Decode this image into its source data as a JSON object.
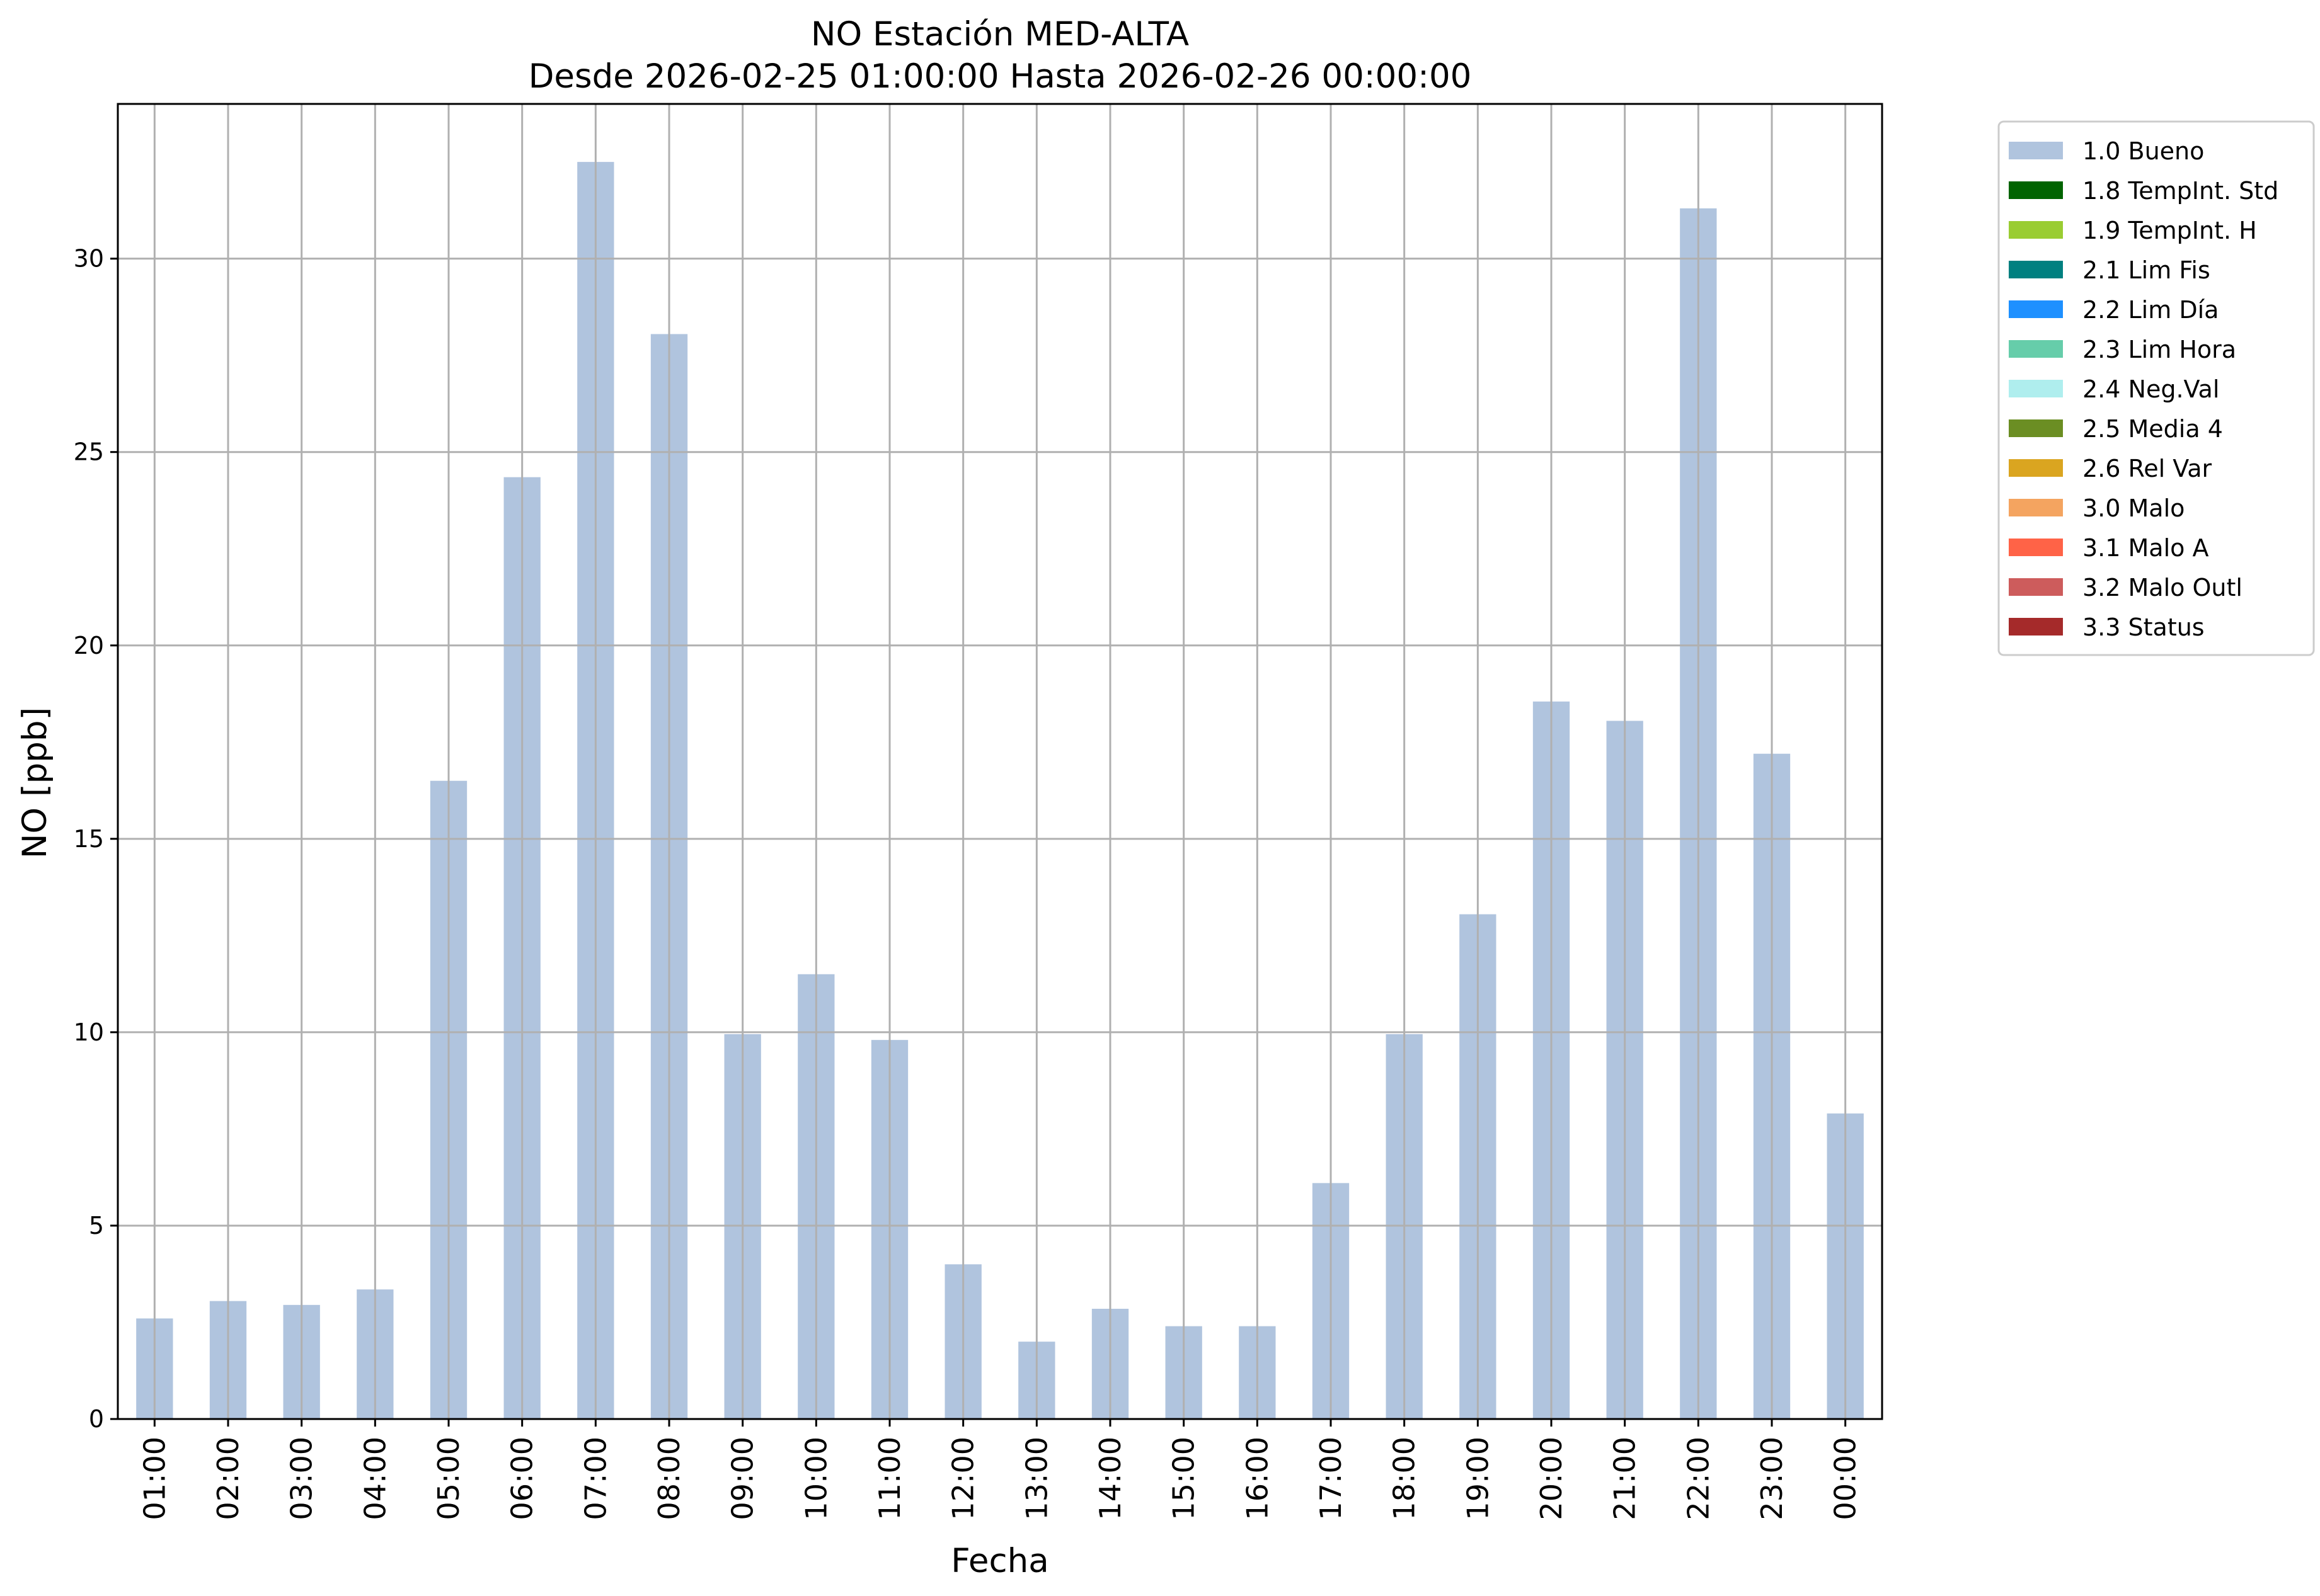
{
  "chart_data": {
    "type": "bar",
    "title": "NO Estación MED-ALTA",
    "subtitle": "Desde 2026-02-25 01:00:00 Hasta 2026-02-26 00:00:00",
    "xlabel": "Fecha",
    "ylabel": "NO [ppb]",
    "ylim": [
      0,
      34
    ],
    "yticks": [
      0,
      5,
      10,
      15,
      20,
      25,
      30
    ],
    "grid": true,
    "legend_position": "outside-top-right",
    "categories": [
      "01:00",
      "02:00",
      "03:00",
      "04:00",
      "05:00",
      "06:00",
      "07:00",
      "08:00",
      "09:00",
      "10:00",
      "11:00",
      "12:00",
      "13:00",
      "14:00",
      "15:00",
      "16:00",
      "17:00",
      "18:00",
      "19:00",
      "20:00",
      "21:00",
      "22:00",
      "23:00",
      "00:00"
    ],
    "series": [
      {
        "name": "1.0 Bueno",
        "color": "#b0c4de",
        "values": [
          2.6,
          3.05,
          2.95,
          3.35,
          16.5,
          24.35,
          32.5,
          28.05,
          9.95,
          11.5,
          9.8,
          4.0,
          2.0,
          2.85,
          2.4,
          2.4,
          6.1,
          9.95,
          13.05,
          18.55,
          18.05,
          31.3,
          17.2,
          7.9
        ]
      },
      {
        "name": "1.8 TempInt. Std",
        "color": "#006400",
        "values": [
          0,
          0,
          0,
          0,
          0,
          0,
          0,
          0,
          0,
          0,
          0,
          0,
          0,
          0,
          0,
          0,
          0,
          0,
          0,
          0,
          0,
          0,
          0,
          0
        ]
      },
      {
        "name": "1.9 TempInt. H",
        "color": "#9acd32",
        "values": [
          0,
          0,
          0,
          0,
          0,
          0,
          0,
          0,
          0,
          0,
          0,
          0,
          0,
          0,
          0,
          0,
          0,
          0,
          0,
          0,
          0,
          0,
          0,
          0
        ]
      },
      {
        "name": "2.1 Lim Fis",
        "color": "#008080",
        "values": [
          0,
          0,
          0,
          0,
          0,
          0,
          0,
          0,
          0,
          0,
          0,
          0,
          0,
          0,
          0,
          0,
          0,
          0,
          0,
          0,
          0,
          0,
          0,
          0
        ]
      },
      {
        "name": "2.2 Lim Día",
        "color": "#1e90ff",
        "values": [
          0,
          0,
          0,
          0,
          0,
          0,
          0,
          0,
          0,
          0,
          0,
          0,
          0,
          0,
          0,
          0,
          0,
          0,
          0,
          0,
          0,
          0,
          0,
          0
        ]
      },
      {
        "name": "2.3 Lim Hora",
        "color": "#66cdaa",
        "values": [
          0,
          0,
          0,
          0,
          0,
          0,
          0,
          0,
          0,
          0,
          0,
          0,
          0,
          0,
          0,
          0,
          0,
          0,
          0,
          0,
          0,
          0,
          0,
          0
        ]
      },
      {
        "name": "2.4 Neg.Val",
        "color": "#afeeee",
        "values": [
          0,
          0,
          0,
          0,
          0,
          0,
          0,
          0,
          0,
          0,
          0,
          0,
          0,
          0,
          0,
          0,
          0,
          0,
          0,
          0,
          0,
          0,
          0,
          0
        ]
      },
      {
        "name": "2.5 Media 4",
        "color": "#6b8e23",
        "values": [
          0,
          0,
          0,
          0,
          0,
          0,
          0,
          0,
          0,
          0,
          0,
          0,
          0,
          0,
          0,
          0,
          0,
          0,
          0,
          0,
          0,
          0,
          0,
          0
        ]
      },
      {
        "name": "2.6 Rel Var",
        "color": "#daa520",
        "values": [
          0,
          0,
          0,
          0,
          0,
          0,
          0,
          0,
          0,
          0,
          0,
          0,
          0,
          0,
          0,
          0,
          0,
          0,
          0,
          0,
          0,
          0,
          0,
          0
        ]
      },
      {
        "name": "3.0 Malo",
        "color": "#f4a460",
        "values": [
          0,
          0,
          0,
          0,
          0,
          0,
          0,
          0,
          0,
          0,
          0,
          0,
          0,
          0,
          0,
          0,
          0,
          0,
          0,
          0,
          0,
          0,
          0,
          0
        ]
      },
      {
        "name": "3.1 Malo A",
        "color": "#ff6347",
        "values": [
          0,
          0,
          0,
          0,
          0,
          0,
          0,
          0,
          0,
          0,
          0,
          0,
          0,
          0,
          0,
          0,
          0,
          0,
          0,
          0,
          0,
          0,
          0,
          0
        ]
      },
      {
        "name": "3.2 Malo Outl",
        "color": "#cd5c5c",
        "values": [
          0,
          0,
          0,
          0,
          0,
          0,
          0,
          0,
          0,
          0,
          0,
          0,
          0,
          0,
          0,
          0,
          0,
          0,
          0,
          0,
          0,
          0,
          0,
          0
        ]
      },
      {
        "name": "3.3 Status",
        "color": "#a52a2a",
        "values": [
          0,
          0,
          0,
          0,
          0,
          0,
          0,
          0,
          0,
          0,
          0,
          0,
          0,
          0,
          0,
          0,
          0,
          0,
          0,
          0,
          0,
          0,
          0,
          0
        ]
      }
    ]
  }
}
